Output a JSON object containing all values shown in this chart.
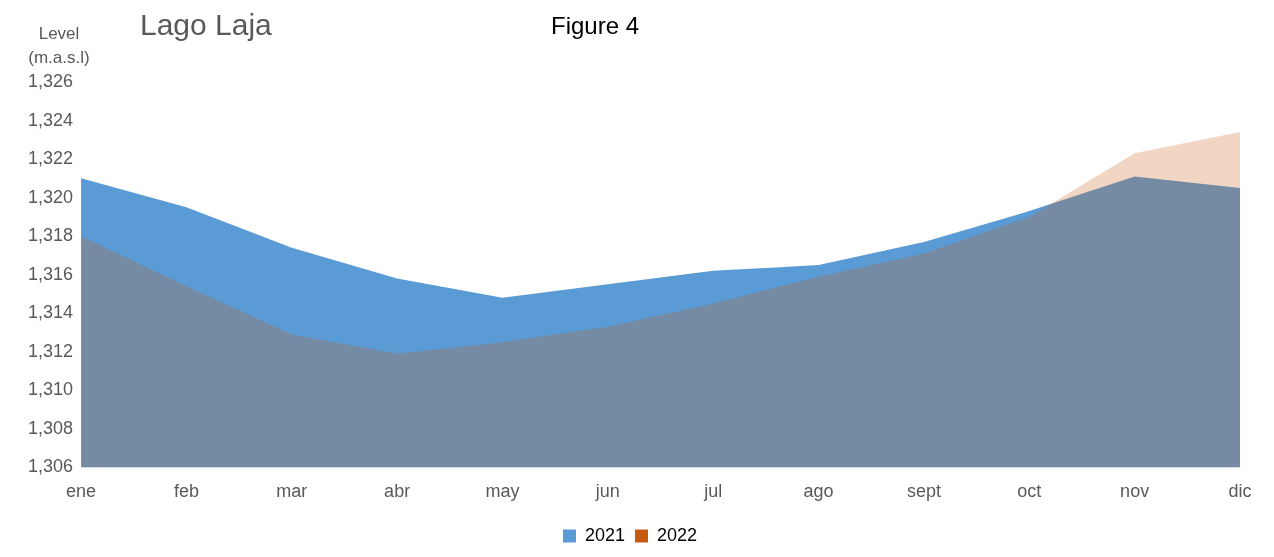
{
  "chart_data": {
    "type": "area",
    "title": "Lago Laja",
    "subtitle": "Figure 4",
    "ylabel": "Level (m.a.s.l)",
    "categories": [
      "ene",
      "feb",
      "mar",
      "abr",
      "may",
      "jun",
      "jul",
      "ago",
      "sept",
      "oct",
      "nov",
      "dic"
    ],
    "series": [
      {
        "name": "2021",
        "color": "#5b9bd5",
        "values": [
          1321.0,
          1319.5,
          1317.4,
          1315.8,
          1314.8,
          1315.5,
          1316.2,
          1316.5,
          1317.7,
          1319.3,
          1321.1,
          1320.5
        ]
      },
      {
        "name": "2022",
        "color": "#c55a11",
        "values": [
          1318.0,
          1315.4,
          1312.9,
          1311.9,
          1312.5,
          1313.3,
          1314.5,
          1315.9,
          1317.1,
          1319.0,
          1322.3,
          1323.4
        ]
      }
    ],
    "ylim": [
      1306,
      1326
    ],
    "yticks": [
      {
        "value": 1306,
        "label": "1,306"
      },
      {
        "value": 1308,
        "label": "1,308"
      },
      {
        "value": 1310,
        "label": "1,310"
      },
      {
        "value": 1312,
        "label": "1,312"
      },
      {
        "value": 1314,
        "label": "1,314"
      },
      {
        "value": 1316,
        "label": "1,316"
      },
      {
        "value": 1318,
        "label": "1,318"
      },
      {
        "value": 1320,
        "label": "1,320"
      },
      {
        "value": 1322,
        "label": "1,322"
      },
      {
        "value": 1324,
        "label": "1,324"
      },
      {
        "value": 1326,
        "label": "1,326"
      }
    ],
    "grid": false,
    "legend": "bottom"
  }
}
